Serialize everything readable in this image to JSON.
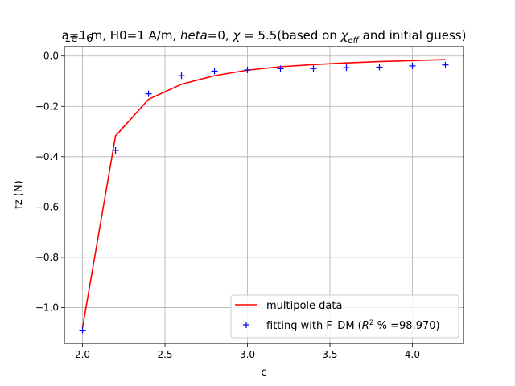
{
  "chart_data": {
    "type": "line",
    "title": "a=1 m, H0=1 A/m, heta=0, χ = 5.5(based on χeff and initial guess)",
    "title_parts": {
      "p1": "a=1 m, H0=1 A/m, ",
      "heta": "heta",
      "p2": "=0, ",
      "chi": "χ",
      "p3": " = 5.5(based on ",
      "chi_eff": "χ",
      "eff": "eff",
      "p4": " and initial guess)"
    },
    "xlabel": "c",
    "ylabel": "fz (N)",
    "y_offset_label": "1e−6",
    "y_scale": 1e-06,
    "xlim": [
      1.89,
      4.31
    ],
    "ylim": [
      -1.1425,
      0.0375
    ],
    "x_ticks": [
      2.0,
      2.5,
      3.0,
      3.5,
      4.0
    ],
    "x_tick_labels": [
      "2.0",
      "2.5",
      "3.0",
      "3.5",
      "4.0"
    ],
    "y_ticks": [
      -1.0,
      -0.8,
      -0.6,
      -0.4,
      -0.2,
      0.0
    ],
    "y_tick_labels": [
      "−1.0",
      "−0.8",
      "−0.6",
      "−0.4",
      "−0.2",
      "0.0"
    ],
    "grid": true,
    "legend_position": "lower-right",
    "x": [
      2.0,
      2.2,
      2.4,
      2.6,
      2.8,
      3.0,
      3.2,
      3.4,
      3.6,
      3.8,
      4.0,
      4.2
    ],
    "series": [
      {
        "name": "multipole data",
        "style": "line",
        "color": "#ff0000",
        "values": [
          -1.08,
          -0.318,
          -0.172,
          -0.112,
          -0.078,
          -0.056,
          -0.042,
          -0.034,
          -0.027,
          -0.022,
          -0.018,
          -0.014
        ]
      },
      {
        "name": "fitting with F_DM (R² % =98.970)",
        "name_parts": {
          "before": "fitting with F_DM (",
          "r": "R",
          "sup": "2",
          "after": " % =98.970)"
        },
        "style": "marker-plus",
        "color": "#0000ff",
        "values": [
          -1.09,
          -0.375,
          -0.15,
          -0.078,
          -0.06,
          -0.055,
          -0.05,
          -0.05,
          -0.046,
          -0.044,
          -0.039,
          -0.035
        ]
      }
    ]
  }
}
